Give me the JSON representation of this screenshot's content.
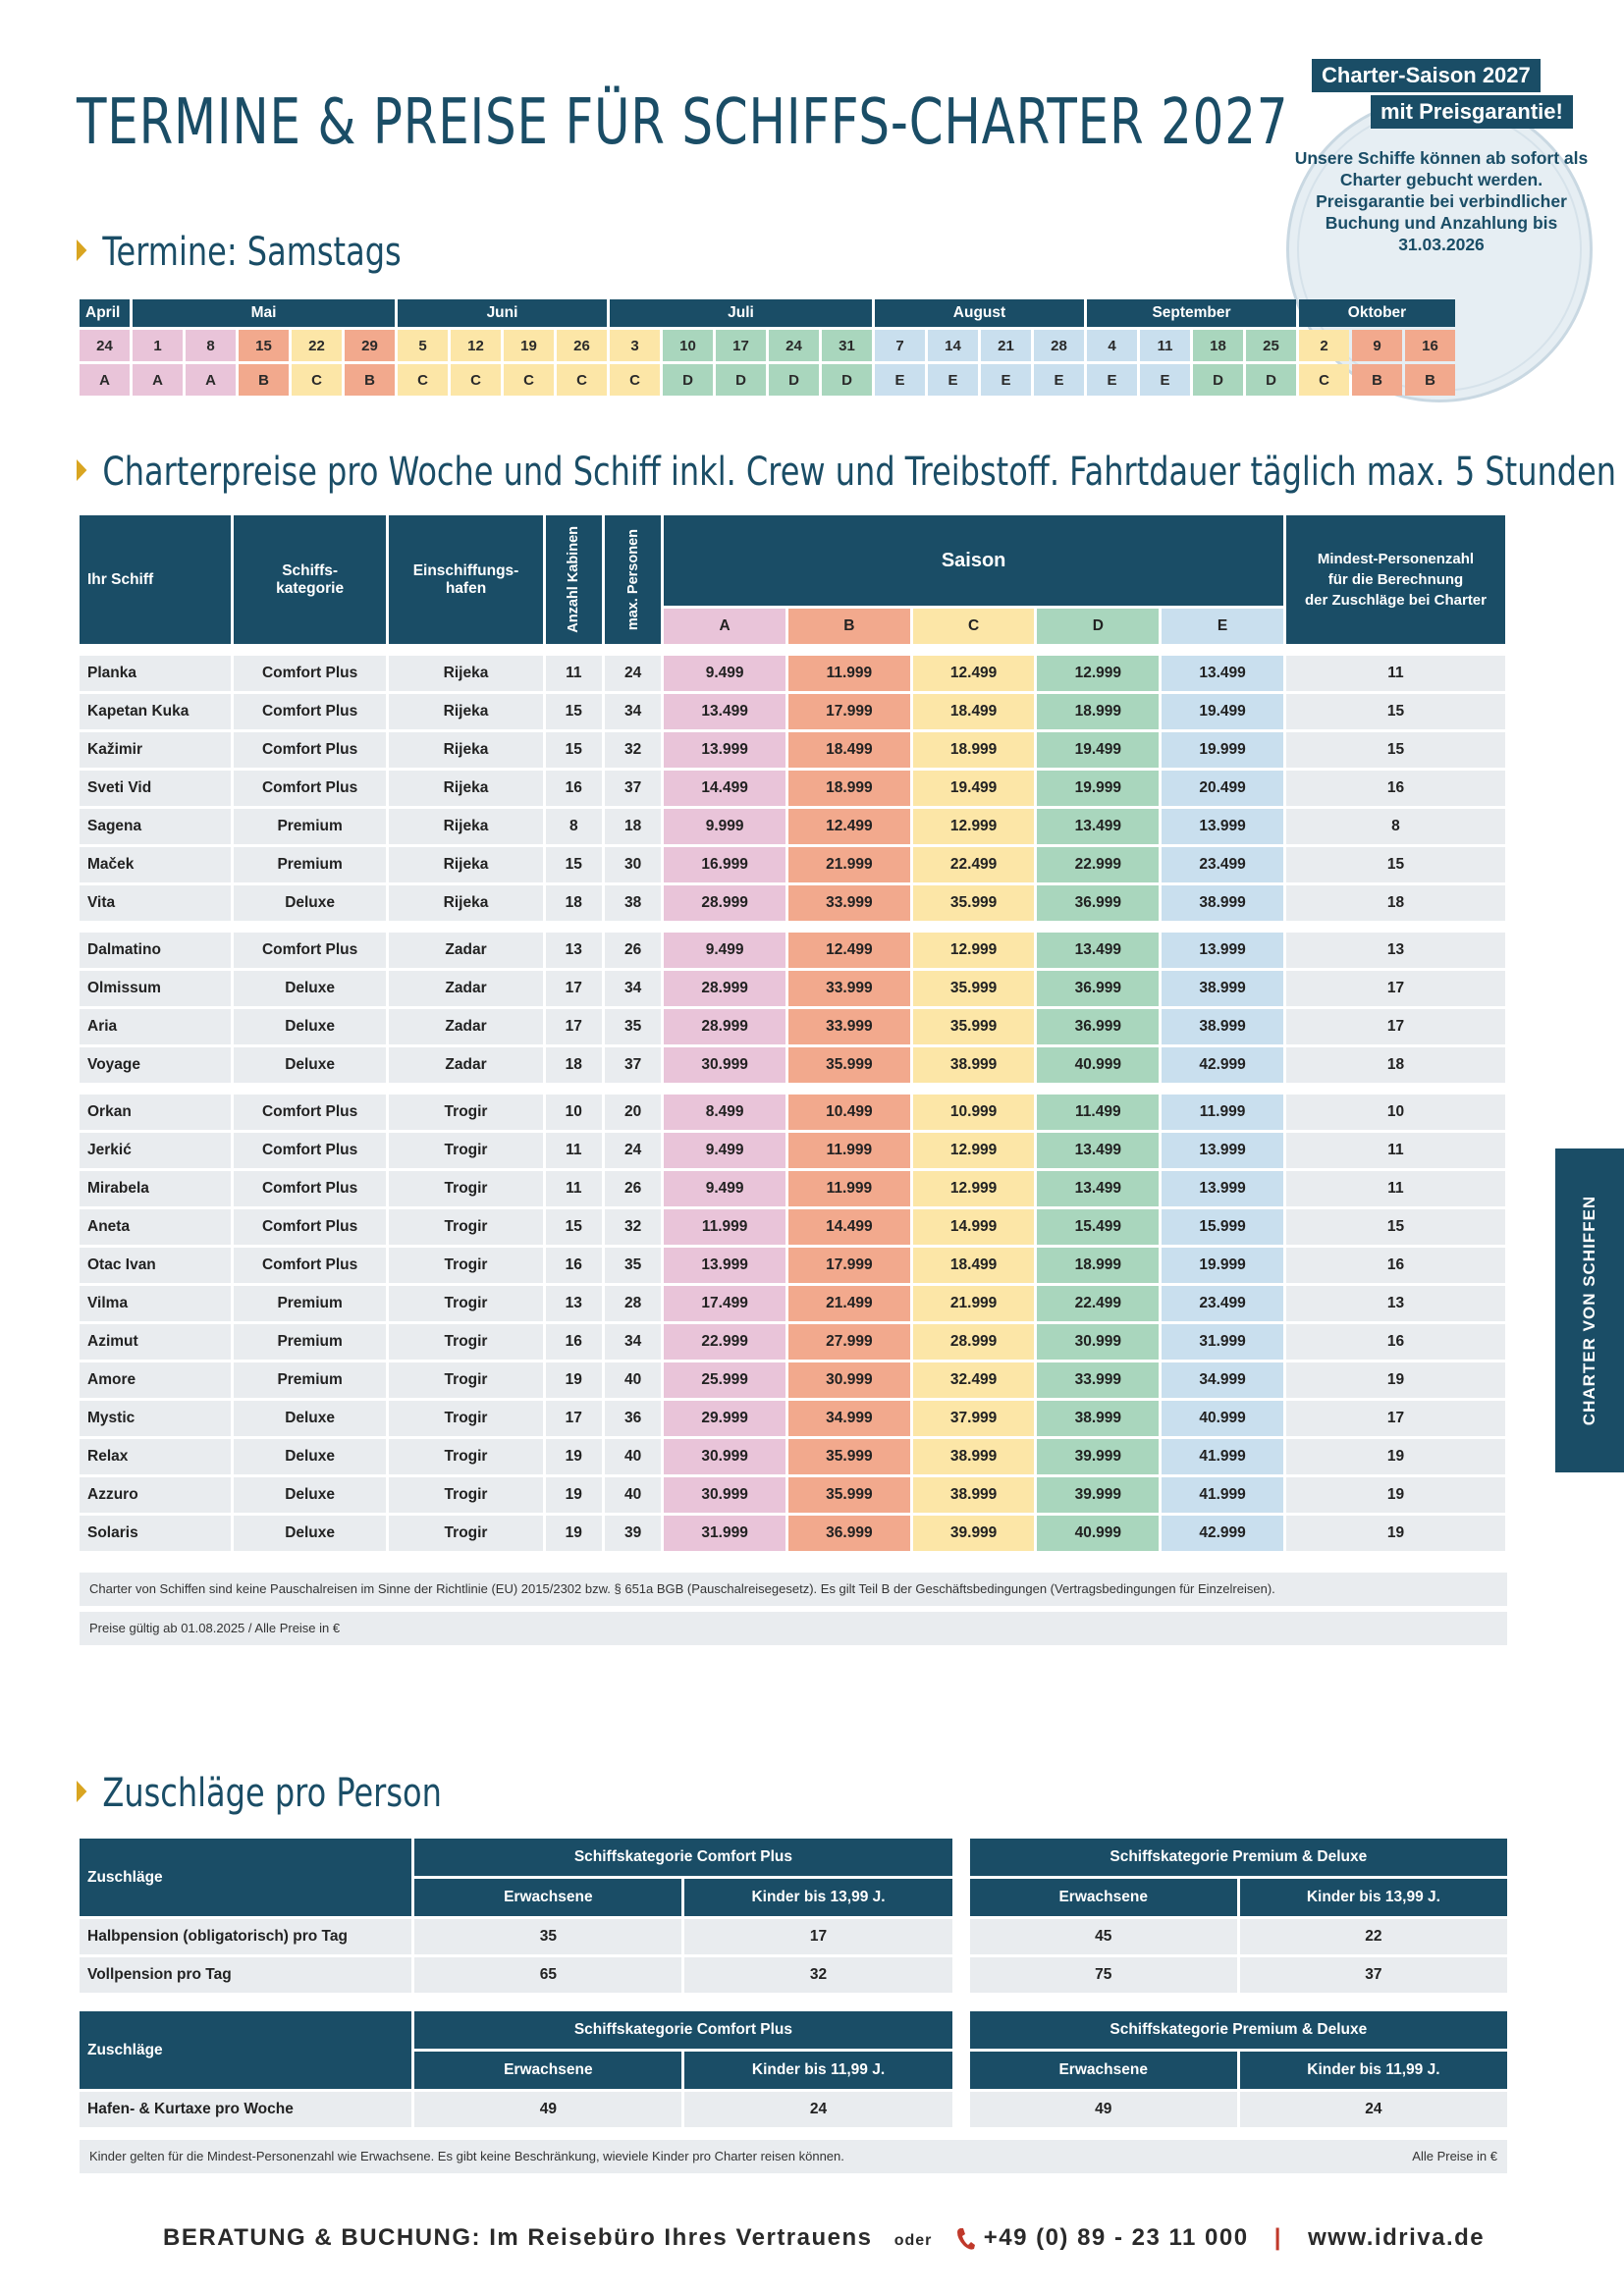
{
  "title": "TERMINE & PREISE FÜR SCHIFFS-CHARTER 2027",
  "badge": {
    "line1": "Charter-Saison 2027",
    "line2": "mit Preisgarantie!",
    "text": "Unsere Schiffe können ab sofort als Charter gebucht werden. Preisgarantie bei verbindlicher Buchung und Anzahlung bis 31.03.2026"
  },
  "section_termine": "Termine: Samstags",
  "calendar": {
    "months": [
      {
        "name": "April",
        "span": 1
      },
      {
        "name": "Mai",
        "span": 5
      },
      {
        "name": "Juni",
        "span": 4
      },
      {
        "name": "Juli",
        "span": 5
      },
      {
        "name": "August",
        "span": 4
      },
      {
        "name": "September",
        "span": 4
      },
      {
        "name": "Oktober",
        "span": 3
      }
    ],
    "days": [
      "24",
      "1",
      "8",
      "15",
      "22",
      "29",
      "5",
      "12",
      "19",
      "26",
      "3",
      "10",
      "17",
      "24",
      "31",
      "7",
      "14",
      "21",
      "28",
      "4",
      "11",
      "18",
      "25",
      "2",
      "9",
      "16"
    ],
    "seasons": [
      "A",
      "A",
      "A",
      "B",
      "C",
      "B",
      "C",
      "C",
      "C",
      "C",
      "C",
      "D",
      "D",
      "D",
      "D",
      "E",
      "E",
      "E",
      "E",
      "E",
      "E",
      "D",
      "D",
      "C",
      "B",
      "B"
    ]
  },
  "section_prices": "Charterpreise pro Woche und Schiff inkl. Crew und Treibstoff. Fahrtdauer täglich max. 5 Stunden",
  "table": {
    "headers": {
      "ship": "Ihr Schiff",
      "category": "Schiffs-\nkategorie",
      "port": "Einschiffungs-\nhafen",
      "cabins": "Anzahl Kabinen",
      "persons": "max. Personen",
      "saison": "Saison",
      "min": "Mindest-Personenzahl\nfür die Berechnung\nder Zuschläge bei Charter",
      "seasons": [
        "A",
        "B",
        "C",
        "D",
        "E"
      ]
    },
    "groups": [
      [
        [
          "Planka",
          "Comfort Plus",
          "Rijeka",
          "11",
          "24",
          "9.499",
          "11.999",
          "12.499",
          "12.999",
          "13.499",
          "11"
        ],
        [
          "Kapetan Kuka",
          "Comfort Plus",
          "Rijeka",
          "15",
          "34",
          "13.499",
          "17.999",
          "18.499",
          "18.999",
          "19.499",
          "15"
        ],
        [
          "Kažimir",
          "Comfort Plus",
          "Rijeka",
          "15",
          "32",
          "13.999",
          "18.499",
          "18.999",
          "19.499",
          "19.999",
          "15"
        ],
        [
          "Sveti Vid",
          "Comfort Plus",
          "Rijeka",
          "16",
          "37",
          "14.499",
          "18.999",
          "19.499",
          "19.999",
          "20.499",
          "16"
        ],
        [
          "Sagena",
          "Premium",
          "Rijeka",
          "8",
          "18",
          "9.999",
          "12.499",
          "12.999",
          "13.499",
          "13.999",
          "8"
        ],
        [
          "Maček",
          "Premium",
          "Rijeka",
          "15",
          "30",
          "16.999",
          "21.999",
          "22.499",
          "22.999",
          "23.499",
          "15"
        ],
        [
          "Vita",
          "Deluxe",
          "Rijeka",
          "18",
          "38",
          "28.999",
          "33.999",
          "35.999",
          "36.999",
          "38.999",
          "18"
        ]
      ],
      [
        [
          "Dalmatino",
          "Comfort Plus",
          "Zadar",
          "13",
          "26",
          "9.499",
          "12.499",
          "12.999",
          "13.499",
          "13.999",
          "13"
        ],
        [
          "Olmissum",
          "Deluxe",
          "Zadar",
          "17",
          "34",
          "28.999",
          "33.999",
          "35.999",
          "36.999",
          "38.999",
          "17"
        ],
        [
          "Aria",
          "Deluxe",
          "Zadar",
          "17",
          "35",
          "28.999",
          "33.999",
          "35.999",
          "36.999",
          "38.999",
          "17"
        ],
        [
          "Voyage",
          "Deluxe",
          "Zadar",
          "18",
          "37",
          "30.999",
          "35.999",
          "38.999",
          "40.999",
          "42.999",
          "18"
        ]
      ],
      [
        [
          "Orkan",
          "Comfort Plus",
          "Trogir",
          "10",
          "20",
          "8.499",
          "10.499",
          "10.999",
          "11.499",
          "11.999",
          "10"
        ],
        [
          "Jerkić",
          "Comfort Plus",
          "Trogir",
          "11",
          "24",
          "9.499",
          "11.999",
          "12.999",
          "13.499",
          "13.999",
          "11"
        ],
        [
          "Mirabela",
          "Comfort Plus",
          "Trogir",
          "11",
          "26",
          "9.499",
          "11.999",
          "12.999",
          "13.499",
          "13.999",
          "11"
        ],
        [
          "Aneta",
          "Comfort Plus",
          "Trogir",
          "15",
          "32",
          "11.999",
          "14.499",
          "14.999",
          "15.499",
          "15.999",
          "15"
        ],
        [
          "Otac Ivan",
          "Comfort Plus",
          "Trogir",
          "16",
          "35",
          "13.999",
          "17.999",
          "18.499",
          "18.999",
          "19.999",
          "16"
        ],
        [
          "Vilma",
          "Premium",
          "Trogir",
          "13",
          "28",
          "17.499",
          "21.499",
          "21.999",
          "22.499",
          "23.499",
          "13"
        ],
        [
          "Azimut",
          "Premium",
          "Trogir",
          "16",
          "34",
          "22.999",
          "27.999",
          "28.999",
          "30.999",
          "31.999",
          "16"
        ],
        [
          "Amore",
          "Premium",
          "Trogir",
          "19",
          "40",
          "25.999",
          "30.999",
          "32.499",
          "33.999",
          "34.999",
          "19"
        ],
        [
          "Mystic",
          "Deluxe",
          "Trogir",
          "17",
          "36",
          "29.999",
          "34.999",
          "37.999",
          "38.999",
          "40.999",
          "17"
        ],
        [
          "Relax",
          "Deluxe",
          "Trogir",
          "19",
          "40",
          "30.999",
          "35.999",
          "38.999",
          "39.999",
          "41.999",
          "19"
        ],
        [
          "Azzuro",
          "Deluxe",
          "Trogir",
          "19",
          "40",
          "30.999",
          "35.999",
          "38.999",
          "39.999",
          "41.999",
          "19"
        ],
        [
          "Solaris",
          "Deluxe",
          "Trogir",
          "19",
          "39",
          "31.999",
          "36.999",
          "39.999",
          "40.999",
          "42.999",
          "19"
        ]
      ]
    ]
  },
  "note1": "Charter von Schiffen sind keine Pauschalreisen im Sinne der Richtlinie (EU) 2015/2302 bzw. § 651a BGB (Pauschalreisegesetz).  Es gilt Teil B der Geschäftsbedingungen (Vertragsbedingungen für Einzelreisen).",
  "note2": "Preise gültig ab 01.08.2025 / Alle  Preise in €",
  "side_tab": "CHARTER VON SCHIFFEN",
  "section_zuschlaege": "Zuschläge pro Person",
  "supp1": {
    "label": "Zuschläge",
    "cat1": "Schiffskategorie Comfort Plus",
    "cat2": "Schiffskategorie Premium & Deluxe",
    "adult": "Erwachsene",
    "child": "Kinder bis 13,99 J.",
    "rows": [
      [
        "Halbpension (obligatorisch) pro Tag",
        "35",
        "17",
        "45",
        "22"
      ],
      [
        "Vollpension pro Tag",
        "65",
        "32",
        "75",
        "37"
      ]
    ]
  },
  "supp2": {
    "label": "Zuschläge",
    "cat1": "Schiffskategorie Comfort Plus",
    "cat2": "Schiffskategorie Premium & Deluxe",
    "adult": "Erwachsene",
    "child": "Kinder bis 11,99 J.",
    "rows": [
      [
        "Hafen- & Kurtaxe pro Woche",
        "49",
        "24",
        "49",
        "24"
      ]
    ]
  },
  "note3_left": "Kinder gelten für die Mindest-Personenzahl wie Erwachsene. Es gibt keine Beschränkung, wieviele Kinder pro Charter reisen können.",
  "note3_right": "Alle  Preise in €",
  "footer": {
    "lead": "BERATUNG & BUCHUNG: Im Reisebüro Ihres Vertrauens",
    "oder": "oder",
    "phone": "+49 (0) 89 - 23 11 000",
    "sep": "|",
    "web": "www.idriva.de"
  }
}
